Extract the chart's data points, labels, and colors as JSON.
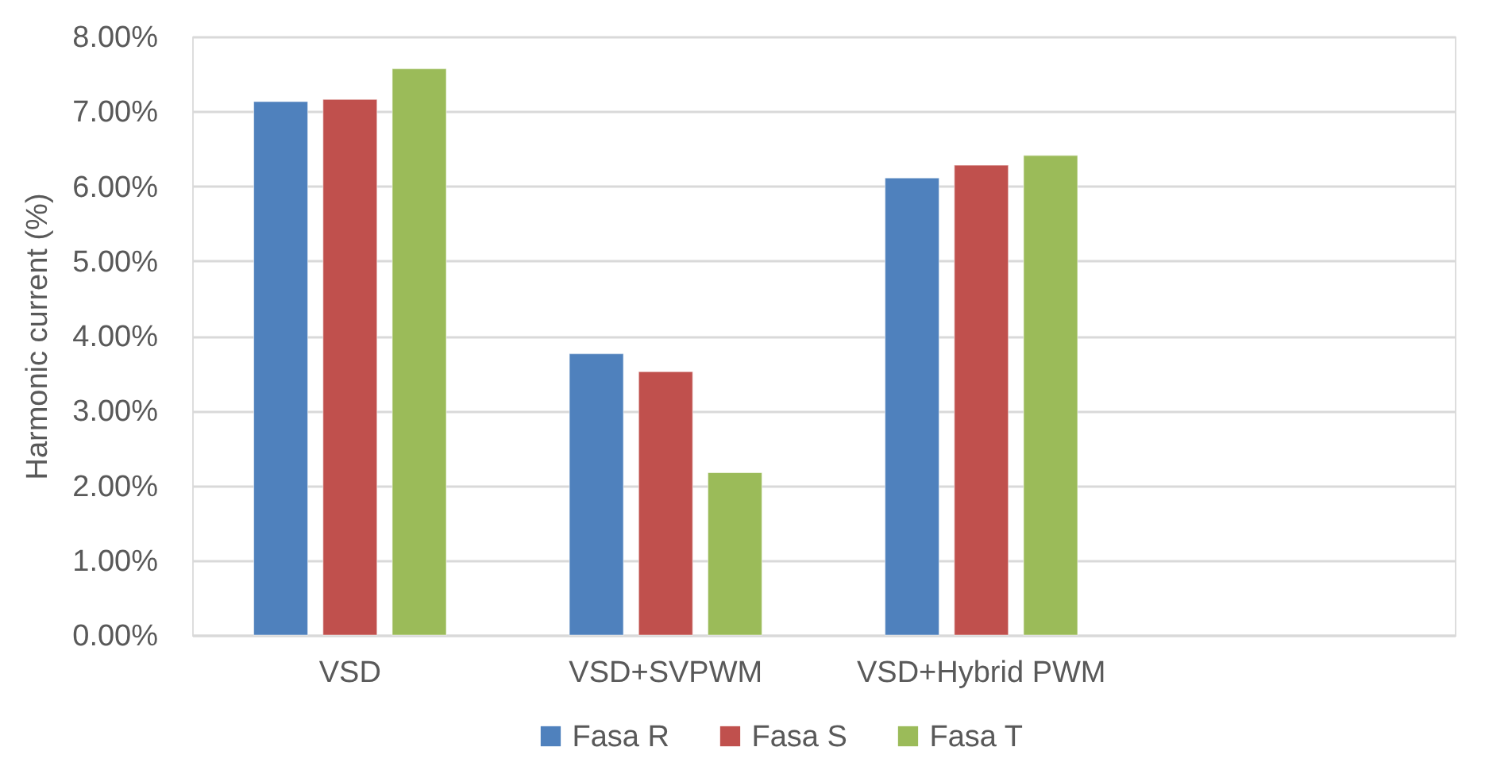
{
  "chart_data": {
    "type": "bar",
    "ylabel": "Harmonic current (%)",
    "categories": [
      "VSD",
      "VSD+SVPWM",
      "VSD+Hybrid PWM",
      null
    ],
    "series": [
      {
        "name": "Fasa R",
        "color": "#4f81bd",
        "values": [
          7.13,
          3.76,
          6.11,
          null
        ]
      },
      {
        "name": "Fasa S",
        "color": "#c0504d",
        "values": [
          7.16,
          3.52,
          6.28,
          null
        ]
      },
      {
        "name": "Fasa T",
        "color": "#9bbb59",
        "values": [
          7.57,
          2.17,
          6.41,
          null
        ]
      }
    ],
    "ylim": [
      0,
      8
    ],
    "yticks": [
      {
        "value": 0,
        "label": "0.00%"
      },
      {
        "value": 1,
        "label": "1.00%"
      },
      {
        "value": 2,
        "label": "2.00%"
      },
      {
        "value": 3,
        "label": "3.00%"
      },
      {
        "value": 4,
        "label": "4.00%"
      },
      {
        "value": 5,
        "label": "5.00%"
      },
      {
        "value": 6,
        "label": "6.00%"
      },
      {
        "value": 7,
        "label": "7.00%"
      },
      {
        "value": 8,
        "label": "8.00%"
      }
    ],
    "grid": "y",
    "legend": "bottom"
  }
}
